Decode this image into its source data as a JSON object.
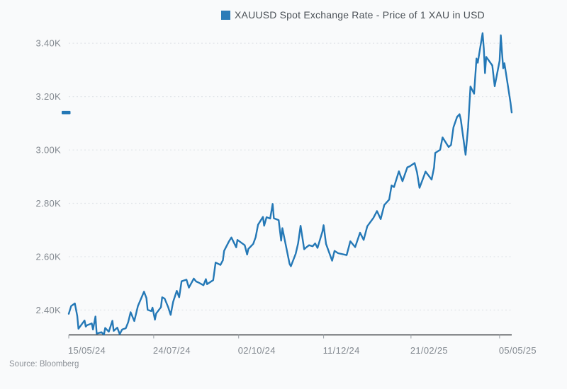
{
  "legend": {
    "label": "XAUUSD Spot Exchange Rate - Price of 1 XAU in USD",
    "swatch_color": "#2c7cb8"
  },
  "source": {
    "text": "Source: Bloomberg"
  },
  "colors": {
    "background": "#f9fafb",
    "line": "#2478b6",
    "last_price_marker": "#2478b6",
    "grid": "#e2e5e9",
    "axis": "#3b3e42",
    "tick": "#9aa0a6",
    "axis_label": "#82888f",
    "legend_text": "#4a5056",
    "source_text": "#8d9298"
  },
  "chart_data": {
    "type": "line",
    "title": "XAUUSD Spot Exchange Rate - Price of 1 XAU in USD",
    "xlabel": "",
    "ylabel": "",
    "legend_position": "top-center",
    "grid": "horizontal-dashed",
    "ylim": [
      2307,
      3460
    ],
    "x_domain_days": [
      0,
      365
    ],
    "y_ticks": [
      {
        "value": 3400,
        "label": "3.40K"
      },
      {
        "value": 3200,
        "label": "3.20K"
      },
      {
        "value": 3000,
        "label": "3.00K"
      },
      {
        "value": 2800,
        "label": "2.80K"
      },
      {
        "value": 2600,
        "label": "2.60K"
      },
      {
        "value": 2400,
        "label": "2.40K"
      }
    ],
    "x_ticks": [
      {
        "day": 0,
        "label": "15/05/24"
      },
      {
        "day": 70,
        "label": "24/07/24"
      },
      {
        "day": 140,
        "label": "02/10/24"
      },
      {
        "day": 210,
        "label": "11/12/24"
      },
      {
        "day": 282,
        "label": "21/02/25"
      },
      {
        "day": 355,
        "label": "05/05/25"
      }
    ],
    "last_value": 3140,
    "series": [
      {
        "name": "XAUUSD Spot Exchange Rate - Price of 1 XAU in USD",
        "points": [
          [
            0,
            2386
          ],
          [
            2,
            2415
          ],
          [
            5,
            2425
          ],
          [
            7,
            2378
          ],
          [
            8,
            2330
          ],
          [
            13,
            2361
          ],
          [
            14,
            2338
          ],
          [
            15,
            2343
          ],
          [
            19,
            2350
          ],
          [
            20,
            2327
          ],
          [
            22,
            2376
          ],
          [
            23,
            2312
          ],
          [
            27,
            2317
          ],
          [
            29,
            2308
          ],
          [
            30,
            2333
          ],
          [
            33,
            2319
          ],
          [
            36,
            2360
          ],
          [
            37,
            2322
          ],
          [
            40,
            2334
          ],
          [
            42,
            2310
          ],
          [
            44,
            2327
          ],
          [
            47,
            2332
          ],
          [
            49,
            2355
          ],
          [
            51,
            2392
          ],
          [
            54,
            2359
          ],
          [
            57,
            2415
          ],
          [
            62,
            2469
          ],
          [
            64,
            2445
          ],
          [
            65,
            2401
          ],
          [
            68,
            2396
          ],
          [
            69,
            2409
          ],
          [
            71,
            2364
          ],
          [
            72,
            2387
          ],
          [
            76,
            2411
          ],
          [
            77,
            2448
          ],
          [
            79,
            2443
          ],
          [
            82,
            2410
          ],
          [
            84,
            2382
          ],
          [
            86,
            2431
          ],
          [
            89,
            2472
          ],
          [
            91,
            2448
          ],
          [
            93,
            2508
          ],
          [
            97,
            2514
          ],
          [
            99,
            2484
          ],
          [
            103,
            2518
          ],
          [
            105,
            2507
          ],
          [
            107,
            2503
          ],
          [
            111,
            2493
          ],
          [
            113,
            2516
          ],
          [
            114,
            2497
          ],
          [
            117,
            2506
          ],
          [
            119,
            2512
          ],
          [
            121,
            2578
          ],
          [
            125,
            2569
          ],
          [
            127,
            2587
          ],
          [
            128,
            2622
          ],
          [
            132,
            2657
          ],
          [
            134,
            2672
          ],
          [
            138,
            2635
          ],
          [
            139,
            2663
          ],
          [
            145,
            2643
          ],
          [
            147,
            2608
          ],
          [
            148,
            2629
          ],
          [
            152,
            2648
          ],
          [
            154,
            2673
          ],
          [
            156,
            2720
          ],
          [
            160,
            2749
          ],
          [
            161,
            2716
          ],
          [
            163,
            2748
          ],
          [
            166,
            2743
          ],
          [
            168,
            2798
          ],
          [
            169,
            2744
          ],
          [
            173,
            2737
          ],
          [
            175,
            2660
          ],
          [
            176,
            2707
          ],
          [
            180,
            2618
          ],
          [
            182,
            2573
          ],
          [
            183,
            2564
          ],
          [
            187,
            2611
          ],
          [
            189,
            2650
          ],
          [
            191,
            2716
          ],
          [
            194,
            2628
          ],
          [
            196,
            2636
          ],
          [
            198,
            2643
          ],
          [
            201,
            2639
          ],
          [
            203,
            2650
          ],
          [
            205,
            2633
          ],
          [
            209,
            2694
          ],
          [
            210,
            2718
          ],
          [
            212,
            2648
          ],
          [
            217,
            2585
          ],
          [
            219,
            2622
          ],
          [
            222,
            2613
          ],
          [
            229,
            2606
          ],
          [
            232,
            2658
          ],
          [
            236,
            2636
          ],
          [
            240,
            2690
          ],
          [
            243,
            2663
          ],
          [
            246,
            2714
          ],
          [
            251,
            2745
          ],
          [
            254,
            2771
          ],
          [
            257,
            2741
          ],
          [
            260,
            2794
          ],
          [
            264,
            2814
          ],
          [
            266,
            2867
          ],
          [
            268,
            2861
          ],
          [
            272,
            2920
          ],
          [
            275,
            2883
          ],
          [
            279,
            2935
          ],
          [
            281,
            2939
          ],
          [
            285,
            2951
          ],
          [
            287,
            2916
          ],
          [
            289,
            2858
          ],
          [
            292,
            2894
          ],
          [
            294,
            2919
          ],
          [
            299,
            2889
          ],
          [
            301,
            2934
          ],
          [
            302,
            2989
          ],
          [
            306,
            3001
          ],
          [
            308,
            3047
          ],
          [
            313,
            3011
          ],
          [
            315,
            3019
          ],
          [
            317,
            3085
          ],
          [
            320,
            3124
          ],
          [
            322,
            3134
          ],
          [
            323,
            3115
          ],
          [
            327,
            2982
          ],
          [
            329,
            3083
          ],
          [
            331,
            3238
          ],
          [
            334,
            3211
          ],
          [
            336,
            3343
          ],
          [
            337,
            3327
          ],
          [
            341,
            3438
          ],
          [
            342,
            3381
          ],
          [
            343,
            3288
          ],
          [
            344,
            3349
          ],
          [
            349,
            3317
          ],
          [
            351,
            3239
          ],
          [
            355,
            3334
          ],
          [
            356,
            3430
          ],
          [
            357,
            3365
          ],
          [
            358,
            3306
          ],
          [
            359,
            3325
          ],
          [
            362,
            3236
          ],
          [
            364,
            3177
          ],
          [
            365,
            3140
          ]
        ]
      }
    ]
  }
}
